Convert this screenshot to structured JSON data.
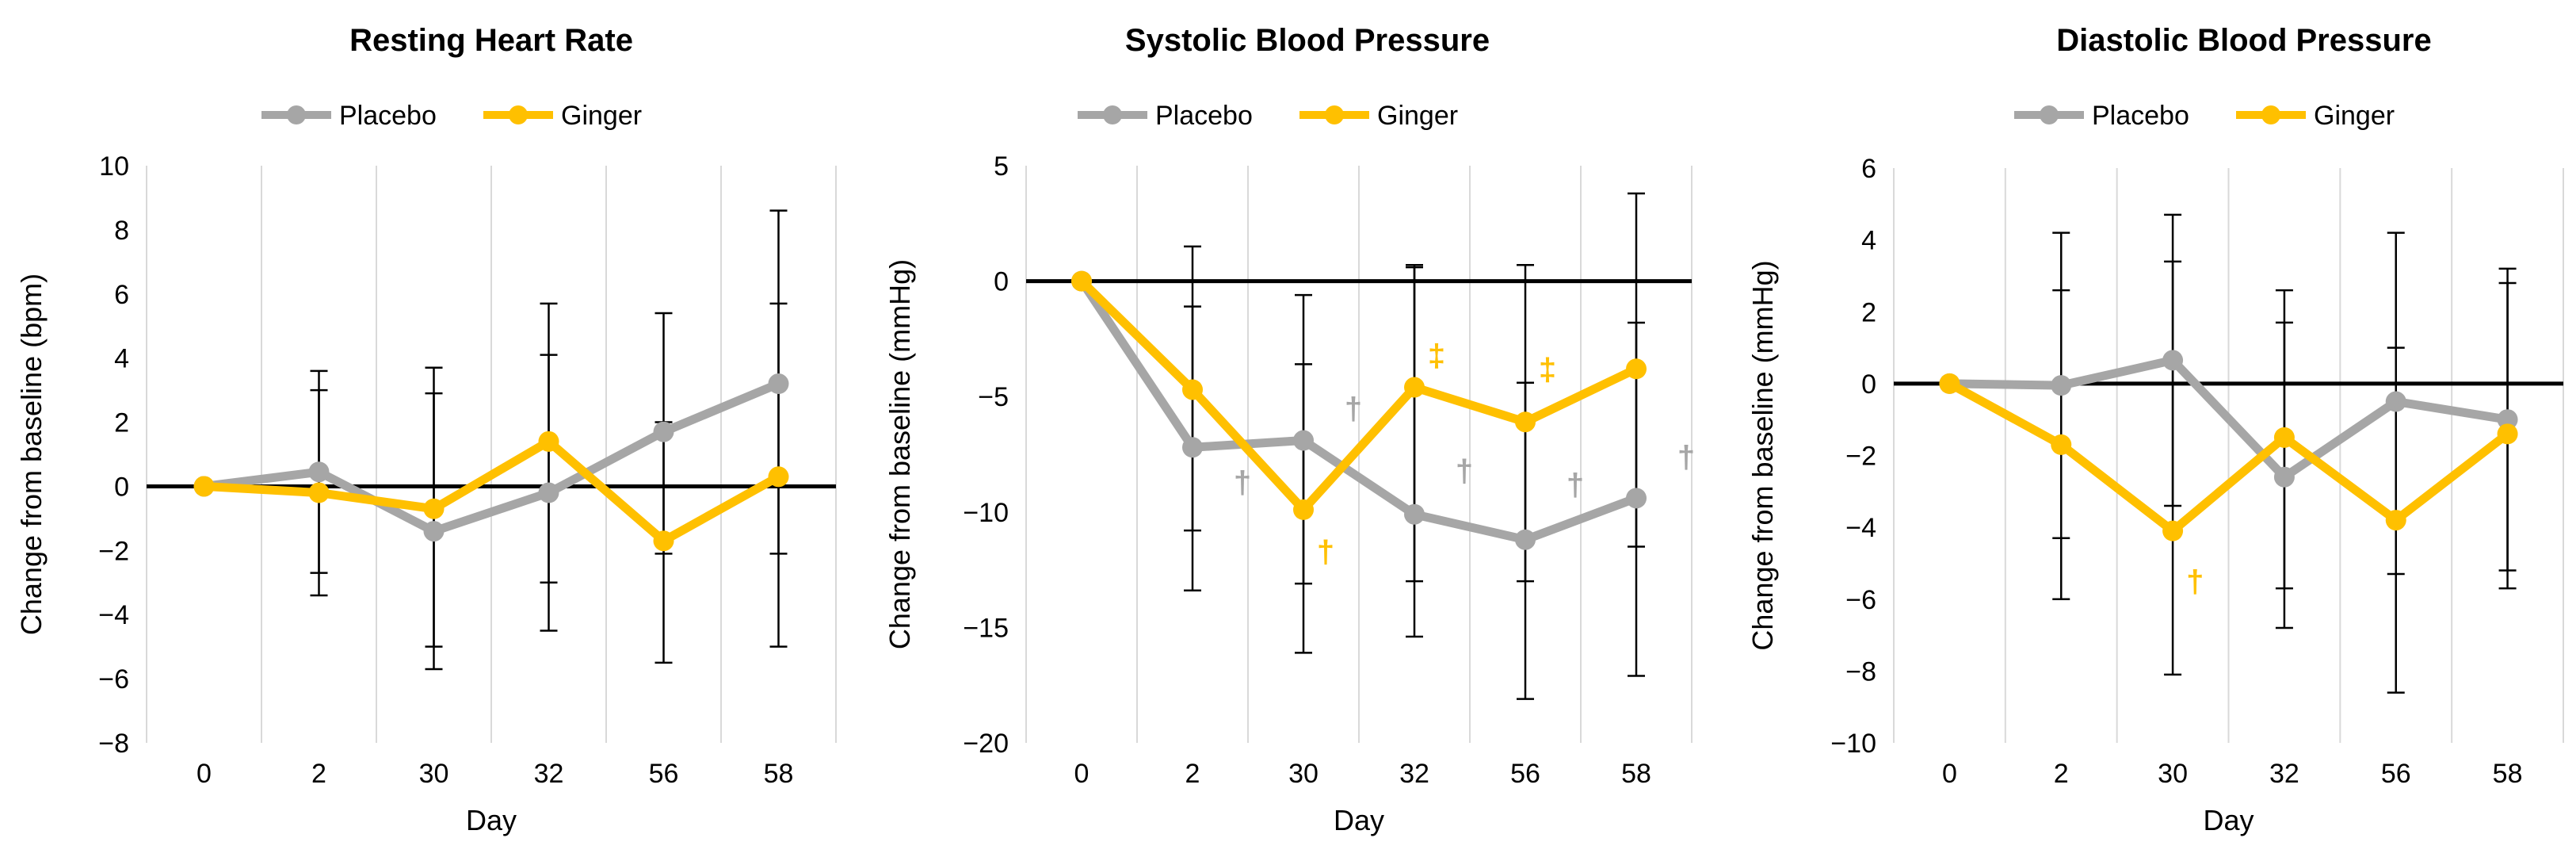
{
  "colors": {
    "placebo": "#a6a6a6",
    "ginger": "#ffc000",
    "errorbar": "#000000",
    "zeroline": "#000000",
    "text": "#000000"
  },
  "chart_data": [
    {
      "type": "line",
      "title": "Resting Heart Rate",
      "xlabel": "Day",
      "ylabel": "Change from baseline (bpm)",
      "categories": [
        "0",
        "2",
        "30",
        "32",
        "56",
        "58"
      ],
      "ylim": [
        -8,
        10
      ],
      "yticks": [
        -8,
        -6,
        -4,
        -2,
        0,
        2,
        4,
        6,
        8,
        10
      ],
      "ytick_labels": [
        "−8",
        "−6",
        "−4",
        "−2",
        "0",
        "2",
        "4",
        "6",
        "8",
        "10"
      ],
      "grid": "vertical",
      "legend": "top-center",
      "series": [
        {
          "name": "Placebo",
          "color": "#a6a6a6",
          "values": [
            0,
            0.45,
            -1.4,
            -0.2,
            1.7,
            3.2
          ],
          "err_low": [
            0,
            -3.4,
            -5.7,
            -4.5,
            -5.5,
            -5.0
          ],
          "err_high": [
            0,
            3.6,
            3.7,
            5.7,
            5.4,
            8.6
          ]
        },
        {
          "name": "Ginger",
          "color": "#ffc000",
          "values": [
            0,
            -0.2,
            -0.7,
            1.4,
            -1.7,
            0.3
          ],
          "err_low": [
            0,
            -2.7,
            -5.0,
            -3.0,
            -2.1,
            -2.1
          ],
          "err_high": [
            0,
            3.0,
            2.9,
            4.1,
            2.0,
            5.7
          ]
        }
      ],
      "annotations": []
    },
    {
      "type": "line",
      "title": "Systolic Blood Pressure",
      "xlabel": "Day",
      "ylabel": "Change from baseline (mmHg)",
      "categories": [
        "0",
        "2",
        "30",
        "32",
        "56",
        "58"
      ],
      "ylim": [
        -20,
        5
      ],
      "yticks": [
        -20,
        -15,
        -10,
        -5,
        0,
        5
      ],
      "ytick_labels": [
        "−20",
        "−15",
        "−10",
        "−5",
        "0",
        "5"
      ],
      "grid": "vertical",
      "legend": "top-center",
      "series": [
        {
          "name": "Placebo",
          "color": "#a6a6a6",
          "values": [
            0,
            -7.2,
            -6.9,
            -10.1,
            -11.2,
            -9.4
          ],
          "err_low": [
            0,
            -13.4,
            -16.1,
            -15.4,
            -18.1,
            -17.1
          ],
          "err_high": [
            0,
            1.5,
            -0.6,
            0.7,
            0.7,
            3.8
          ]
        },
        {
          "name": "Ginger",
          "color": "#ffc000",
          "values": [
            0,
            -4.7,
            -9.9,
            -4.6,
            -6.1,
            -3.8
          ],
          "err_low": [
            0,
            -10.8,
            -13.1,
            -13.0,
            -13.0,
            -11.5
          ],
          "err_high": [
            0,
            -1.1,
            -3.6,
            0.6,
            -4.4,
            -1.8
          ]
        }
      ],
      "annotations": [
        {
          "text": "†",
          "color": "#a6a6a6",
          "x": 1.45,
          "y": -8.7
        },
        {
          "text": "†",
          "color": "#a6a6a6",
          "x": 2.45,
          "y": -5.5
        },
        {
          "text": "†",
          "color": "#a6a6a6",
          "x": 3.45,
          "y": -8.2
        },
        {
          "text": "†",
          "color": "#a6a6a6",
          "x": 4.45,
          "y": -8.8
        },
        {
          "text": "†",
          "color": "#a6a6a6",
          "x": 5.45,
          "y": -7.6
        },
        {
          "text": "†",
          "color": "#ffc000",
          "x": 2.2,
          "y": -11.7
        },
        {
          "text": "‡",
          "color": "#ffc000",
          "x": 3.2,
          "y": -3.2
        },
        {
          "text": "‡",
          "color": "#ffc000",
          "x": 4.2,
          "y": -3.8
        }
      ]
    },
    {
      "type": "line",
      "title": "Diastolic Blood Pressure",
      "xlabel": "Day",
      "ylabel": "Change from baseline (mmHg)",
      "categories": [
        "0",
        "2",
        "30",
        "32",
        "56",
        "58"
      ],
      "ylim": [
        -10,
        6
      ],
      "yticks": [
        -10,
        -8,
        -6,
        -4,
        -2,
        0,
        2,
        4,
        6
      ],
      "ytick_labels": [
        "−10",
        "−8",
        "−6",
        "−4",
        "−2",
        "0",
        "2",
        "4",
        "6"
      ],
      "grid": "vertical",
      "legend": "top-center",
      "series": [
        {
          "name": "Placebo",
          "color": "#a6a6a6",
          "values": [
            0,
            -0.05,
            0.65,
            -2.6,
            -0.5,
            -1.0
          ],
          "err_low": [
            0,
            -6.0,
            -8.1,
            -6.8,
            -8.6,
            -5.2
          ],
          "err_high": [
            0,
            4.2,
            4.7,
            2.6,
            4.2,
            3.2
          ]
        },
        {
          "name": "Ginger",
          "color": "#ffc000",
          "values": [
            0,
            -1.7,
            -4.1,
            -1.5,
            -3.8,
            -1.4
          ],
          "err_low": [
            0,
            -4.3,
            -3.4,
            -5.7,
            -5.3,
            -5.7
          ],
          "err_high": [
            0,
            2.6,
            3.4,
            1.7,
            1.0,
            2.8
          ]
        }
      ],
      "annotations": [
        {
          "text": "†",
          "color": "#ffc000",
          "x": 2.2,
          "y": -5.5
        }
      ]
    }
  ]
}
